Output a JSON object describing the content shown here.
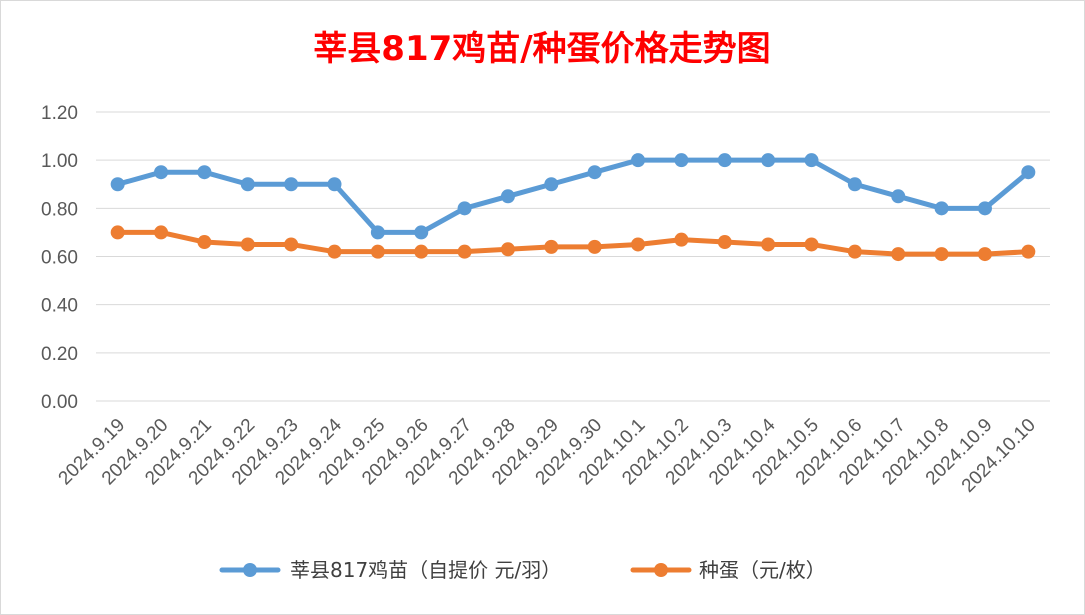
{
  "chart_data": {
    "type": "line",
    "title": "莘县817鸡苗/种蛋价格走势图",
    "categories": [
      "2024.9.19",
      "2024.9.20",
      "2024.9.21",
      "2024.9.22",
      "2024.9.23",
      "2024.9.24",
      "2024.9.25",
      "2024.9.26",
      "2024.9.27",
      "2024.9.28",
      "2024.9.29",
      "2024.9.30",
      "2024.10.1",
      "2024.10.2",
      "2024.10.3",
      "2024.10.4",
      "2024.10.5",
      "2024.10.6",
      "2024.10.7",
      "2024.10.8",
      "2024.10.9",
      "2024.10.10"
    ],
    "series": [
      {
        "name": "莘县817鸡苗（自提价 元/羽）",
        "color": "#5b9bd5",
        "values": [
          0.9,
          0.95,
          0.95,
          0.9,
          0.9,
          0.9,
          0.7,
          0.7,
          0.8,
          0.85,
          0.9,
          0.95,
          1.0,
          1.0,
          1.0,
          1.0,
          1.0,
          0.9,
          0.85,
          0.8,
          0.8,
          0.95
        ]
      },
      {
        "name": "种蛋（元/枚）",
        "color": "#ed7d31",
        "values": [
          0.7,
          0.7,
          0.66,
          0.65,
          0.65,
          0.62,
          0.62,
          0.62,
          0.62,
          0.63,
          0.64,
          0.64,
          0.65,
          0.67,
          0.66,
          0.65,
          0.65,
          0.62,
          0.61,
          0.61,
          0.61,
          0.62
        ]
      }
    ],
    "ylim": [
      0,
      1.2
    ],
    "yticks": [
      "0.00",
      "0.20",
      "0.40",
      "0.60",
      "0.80",
      "1.00",
      "1.20"
    ],
    "grid": true,
    "legend_position": "bottom"
  }
}
